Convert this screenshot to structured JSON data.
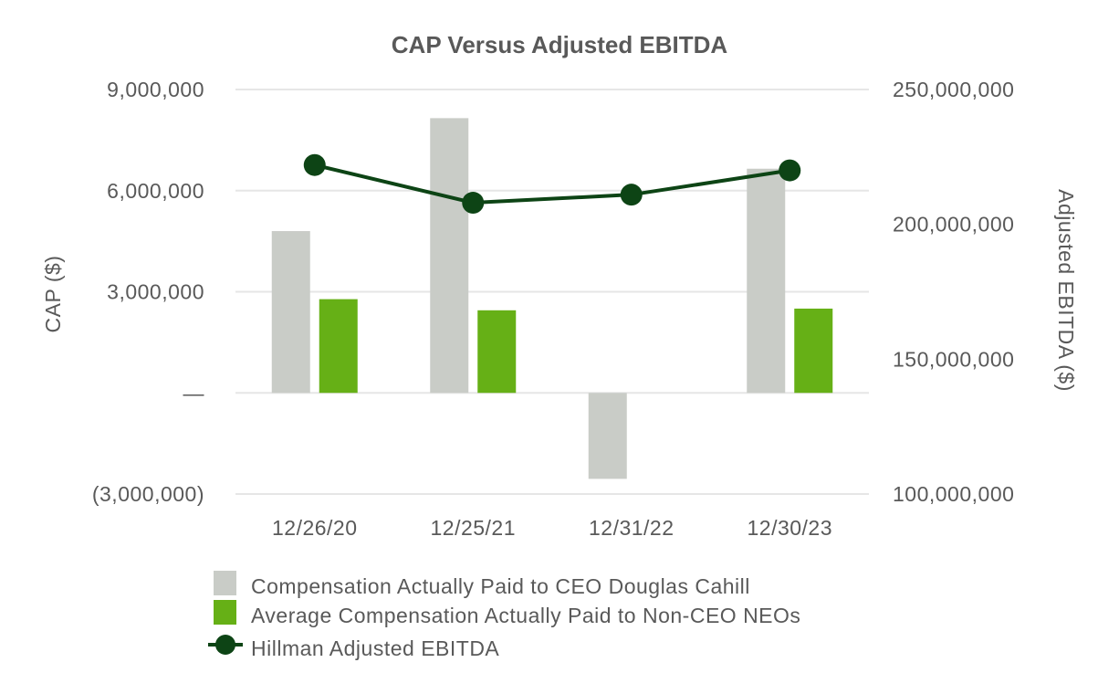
{
  "chart_data": {
    "type": "bar",
    "title": "CAP Versus Adjusted EBITDA",
    "categories": [
      "12/26/20",
      "12/25/21",
      "12/31/22",
      "12/30/23"
    ],
    "ylabel": "CAP ($)",
    "y2label": "Adjusted EBITDA ($)",
    "ylim": [
      -3000000,
      9000000
    ],
    "y2lim": [
      100000000,
      250000000
    ],
    "yticks": [
      -3000000,
      0,
      3000000,
      6000000,
      9000000
    ],
    "yticklabels": [
      "(3,000,000)",
      "—",
      "3,000,000",
      "6,000,000",
      "9,000,000"
    ],
    "y2ticks": [
      100000000,
      150000000,
      200000000,
      250000000
    ],
    "y2ticklabels": [
      "100,000,000",
      "150,000,000",
      "200,000,000",
      "250,000,000"
    ],
    "grid": true,
    "legend_position": "bottom",
    "series": [
      {
        "name": "Compensation Actually Paid to CEO Douglas Cahill",
        "kind": "bar",
        "axis": "left",
        "color": "#c9ccc7",
        "values": [
          4800000,
          8150000,
          -2550000,
          6650000
        ]
      },
      {
        "name": "Average Compensation Actually Paid to Non-CEO NEOs",
        "kind": "bar",
        "axis": "left",
        "color": "#66b016",
        "values": [
          2780000,
          2450000,
          0,
          2500000
        ]
      },
      {
        "name": "Hillman Adjusted EBITDA",
        "kind": "line",
        "axis": "right",
        "color": "#0d4415",
        "values": [
          222000000,
          208000000,
          211000000,
          220000000
        ]
      }
    ]
  }
}
